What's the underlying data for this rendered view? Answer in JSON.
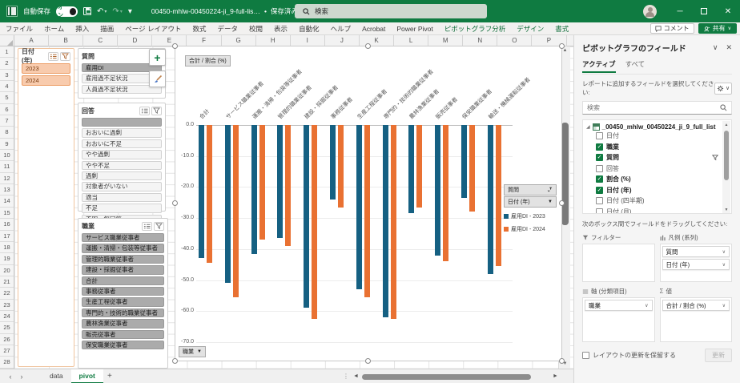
{
  "titlebar": {
    "autosave_label": "自動保存",
    "autosave_state": "オン",
    "filename": "00450-mhlw-00450224-ji_9-full-lis…",
    "saved_status": "保存済み",
    "search_placeholder": "検索"
  },
  "ribbon": {
    "tabs": [
      "ファイル",
      "ホーム",
      "挿入",
      "描画",
      "ページ レイアウト",
      "数式",
      "データ",
      "校閲",
      "表示",
      "自動化",
      "ヘルプ",
      "Acrobat",
      "Power Pivot"
    ],
    "contextual_tabs": [
      "ピボットグラフ分析",
      "デザイン",
      "書式"
    ],
    "comment_label": "コメント",
    "share_label": "共有"
  },
  "sheet": {
    "columns": [
      "A",
      "B",
      "C",
      "D",
      "E",
      "F",
      "G",
      "H",
      "I",
      "J",
      "K",
      "L",
      "M",
      "N",
      "O",
      "P"
    ],
    "row_count": 28
  },
  "slicers": {
    "date": {
      "title": "日付 (年)",
      "items": [
        {
          "label": "2023",
          "selected": true
        },
        {
          "label": "2024",
          "selected": true
        }
      ]
    },
    "question": {
      "title": "質問",
      "items": [
        {
          "label": "雇用DI",
          "selected": true
        },
        {
          "label": "雇用過不足状況",
          "selected": false
        },
        {
          "label": "人員過不足状況",
          "selected": false
        }
      ]
    },
    "answer": {
      "title": "回答",
      "items": [
        {
          "label": "",
          "selected": true
        },
        {
          "label": "おおいに過剰",
          "selected": false
        },
        {
          "label": "おおいに不足",
          "selected": false
        },
        {
          "label": "やや過剰",
          "selected": false
        },
        {
          "label": "やや不足",
          "selected": false
        },
        {
          "label": "過剰",
          "selected": false
        },
        {
          "label": "対象者がいない",
          "selected": false
        },
        {
          "label": "適当",
          "selected": false
        },
        {
          "label": "不足",
          "selected": false
        },
        {
          "label": "不明・無回答",
          "selected": false
        }
      ]
    },
    "job": {
      "title": "職業",
      "items": [
        {
          "label": "サービス職業従事者",
          "selected": true
        },
        {
          "label": "運搬・清掃・包装等従事者",
          "selected": true
        },
        {
          "label": "管理的職業従事者",
          "selected": true
        },
        {
          "label": "建設・採掘従事者",
          "selected": true
        },
        {
          "label": "合計",
          "selected": true
        },
        {
          "label": "事務従事者",
          "selected": true
        },
        {
          "label": "生産工程従事者",
          "selected": true
        },
        {
          "label": "専門的・技術的職業従事者",
          "selected": true
        },
        {
          "label": "農林漁業従事者",
          "selected": true
        },
        {
          "label": "販売従事者",
          "selected": true
        },
        {
          "label": "保安職業従事者",
          "selected": true
        }
      ]
    }
  },
  "chart_data": {
    "type": "bar",
    "title_button": "合計 / 割合 (%)",
    "axis_button": "職業",
    "legend_buttons": [
      {
        "label": "質問",
        "icon": "filter"
      },
      {
        "label": "日付 (年)",
        "icon": "dropdown"
      }
    ],
    "categories": [
      "合計",
      "サービス職業従事者",
      "運搬・清掃・包装等従事者",
      "管理的職業従事者",
      "建設・採掘従事者",
      "事務従事者",
      "生産工程従事者",
      "専門的・技術的職業従事者",
      "農林漁業従事者",
      "販売従事者",
      "保安職業従事者",
      "輸送・機械運転従事者"
    ],
    "series": [
      {
        "name": "雇用DI - 2023",
        "color": "#156082",
        "values": [
          -43,
          -51,
          -41.5,
          -36.5,
          -59,
          -24,
          -53,
          -62,
          -28.5,
          -42,
          -23.5,
          -48
        ]
      },
      {
        "name": "雇用DI - 2024",
        "color": "#E97132",
        "values": [
          -44.5,
          -55.5,
          -37,
          -39,
          -62.5,
          -26.5,
          -55.5,
          -62.5,
          -26.5,
          -44,
          -28,
          -45.5
        ]
      }
    ],
    "ylim": [
      -70,
      0
    ],
    "yticks": [
      "0.0",
      "-10.0",
      "-20.0",
      "-30.0",
      "-40.0",
      "-50.0",
      "-60.0",
      "-70.0"
    ],
    "grid": true,
    "legend_position": "right"
  },
  "fields_pane": {
    "title": "ピボットグラフのフィールド",
    "tabs": [
      "アクティブ",
      "すべて"
    ],
    "active_tab": "アクティブ",
    "choose_text": "レポートに追加するフィールドを選択してください:",
    "search_placeholder": "検索",
    "table_name": "_00450_mhlw_00450224_ji_9_full_list",
    "fields": [
      {
        "label": "日付",
        "checked": false,
        "filtered": false
      },
      {
        "label": "職業",
        "checked": true,
        "filtered": false
      },
      {
        "label": "質問",
        "checked": true,
        "filtered": true
      },
      {
        "label": "回答",
        "checked": false,
        "filtered": false
      },
      {
        "label": "割合 (%)",
        "checked": true,
        "filtered": false
      },
      {
        "label": "日付 (年)",
        "checked": true,
        "filtered": false
      },
      {
        "label": "日付 (四半期)",
        "checked": false,
        "filtered": false
      },
      {
        "label": "日付 (月)",
        "checked": false,
        "filtered": false
      }
    ],
    "drag_text": "次のボックス間でフィールドをドラッグしてください:",
    "areas": {
      "filters": {
        "label": "フィルター",
        "items": []
      },
      "legend": {
        "label": "凡例 (系列)",
        "items": [
          "質問",
          "日付 (年)"
        ]
      },
      "axis": {
        "label": "軸 (分類項目)",
        "items": [
          "職業"
        ]
      },
      "values": {
        "label": "値",
        "items": [
          "合計 / 割合 (%)"
        ]
      }
    },
    "defer_label": "レイアウトの更新を保留する",
    "update_label": "更新"
  },
  "bottombar": {
    "sheet_tabs": [
      "data",
      "pivot"
    ],
    "active_sheet": "pivot"
  }
}
